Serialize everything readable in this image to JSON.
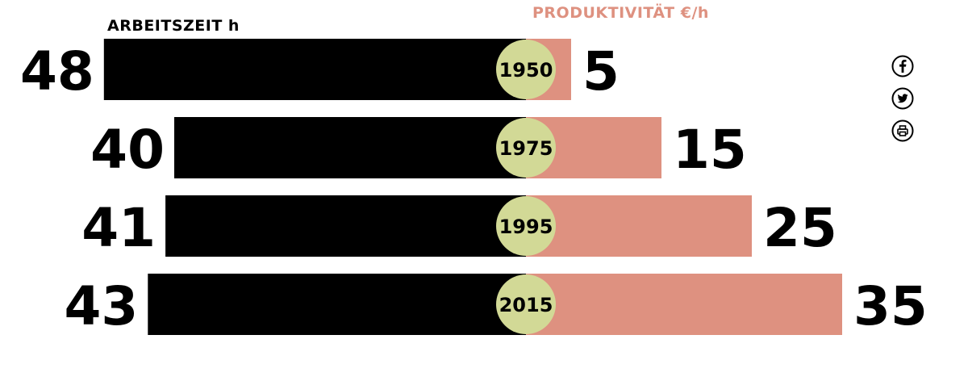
{
  "chart_data": {
    "type": "bar",
    "left_header": "ARBEITSZEIT h",
    "right_header": "PRODUKTIVITÄT €/h",
    "categories": [
      "1950",
      "1975",
      "1995",
      "2015"
    ],
    "series": [
      {
        "name": "ARBEITSZEIT h",
        "values": [
          48,
          40,
          41,
          43
        ],
        "labels": [
          "48",
          "40",
          "41",
          "43"
        ]
      },
      {
        "name": "PRODUKTIVITÄT €/h",
        "values": [
          5,
          15,
          25,
          35
        ],
        "labels": [
          "5",
          "15",
          "25",
          "35"
        ]
      }
    ]
  },
  "colors": {
    "arbeitszeit": "#000000",
    "produktivitaet": "#de9180",
    "year_circle": "#d2d996",
    "left_header": "#000000",
    "right_header": "#de9180",
    "icons": "#000000"
  },
  "share_icons": [
    "facebook-icon",
    "twitter-icon",
    "print-icon"
  ]
}
